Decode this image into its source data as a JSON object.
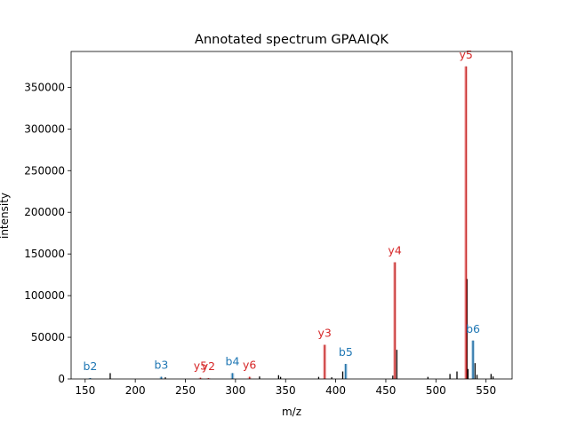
{
  "chart_data": {
    "type": "bar",
    "title": "Annotated spectrum GPAAIQK",
    "xlabel": "m/z",
    "ylabel": "intensity",
    "xlim": [
      136,
      576
    ],
    "ylim": [
      0,
      393000
    ],
    "xticks": [
      150,
      200,
      250,
      300,
      350,
      400,
      450,
      500,
      550
    ],
    "yticks": [
      0,
      50000,
      100000,
      150000,
      200000,
      250000,
      300000,
      350000
    ],
    "grid": false,
    "colors": {
      "b_ion": "#1f77b4",
      "y_ion": "#d62728",
      "unannotated": "#000000"
    },
    "peaks": [
      {
        "mz": 155,
        "intensity": 1000
      },
      {
        "mz": 175,
        "intensity": 7000
      },
      {
        "mz": 226,
        "intensity": 2500
      },
      {
        "mz": 230,
        "intensity": 2000
      },
      {
        "mz": 297,
        "intensity": 7000
      },
      {
        "mz": 314,
        "intensity": 2500
      },
      {
        "mz": 324,
        "intensity": 3000
      },
      {
        "mz": 343,
        "intensity": 4500
      },
      {
        "mz": 345,
        "intensity": 2500
      },
      {
        "mz": 383,
        "intensity": 2500
      },
      {
        "mz": 389,
        "intensity": 41000
      },
      {
        "mz": 396,
        "intensity": 2000
      },
      {
        "mz": 407,
        "intensity": 9000
      },
      {
        "mz": 410,
        "intensity": 18000
      },
      {
        "mz": 457,
        "intensity": 4000
      },
      {
        "mz": 459,
        "intensity": 140000
      },
      {
        "mz": 461,
        "intensity": 35000
      },
      {
        "mz": 492,
        "intensity": 2500
      },
      {
        "mz": 514,
        "intensity": 6000
      },
      {
        "mz": 521,
        "intensity": 9000
      },
      {
        "mz": 530,
        "intensity": 375000
      },
      {
        "mz": 531,
        "intensity": 120000
      },
      {
        "mz": 532,
        "intensity": 12000
      },
      {
        "mz": 537,
        "intensity": 46000
      },
      {
        "mz": 539,
        "intensity": 19000
      },
      {
        "mz": 541,
        "intensity": 5000
      },
      {
        "mz": 555,
        "intensity": 6000
      },
      {
        "mz": 557,
        "intensity": 3000
      }
    ],
    "annotations": [
      {
        "label": "b2",
        "ion": "b",
        "mz": 155,
        "intensity": 1000
      },
      {
        "label": "b3",
        "ion": "b",
        "mz": 226,
        "intensity": 2500
      },
      {
        "label": "y5",
        "ion": "y",
        "mz": 265,
        "intensity": 1500
      },
      {
        "label": "y2",
        "ion": "y",
        "mz": 273,
        "intensity": 1000
      },
      {
        "label": "b4",
        "ion": "b",
        "mz": 297,
        "intensity": 7000
      },
      {
        "label": "y6",
        "ion": "y",
        "mz": 314,
        "intensity": 2500
      },
      {
        "label": "y3",
        "ion": "y",
        "mz": 389,
        "intensity": 41000
      },
      {
        "label": "b5",
        "ion": "b",
        "mz": 410,
        "intensity": 18000
      },
      {
        "label": "y4",
        "ion": "y",
        "mz": 459,
        "intensity": 140000
      },
      {
        "label": "y5",
        "ion": "y",
        "mz": 530,
        "intensity": 375000
      },
      {
        "label": "b6",
        "ion": "b",
        "mz": 537,
        "intensity": 46000
      }
    ]
  }
}
